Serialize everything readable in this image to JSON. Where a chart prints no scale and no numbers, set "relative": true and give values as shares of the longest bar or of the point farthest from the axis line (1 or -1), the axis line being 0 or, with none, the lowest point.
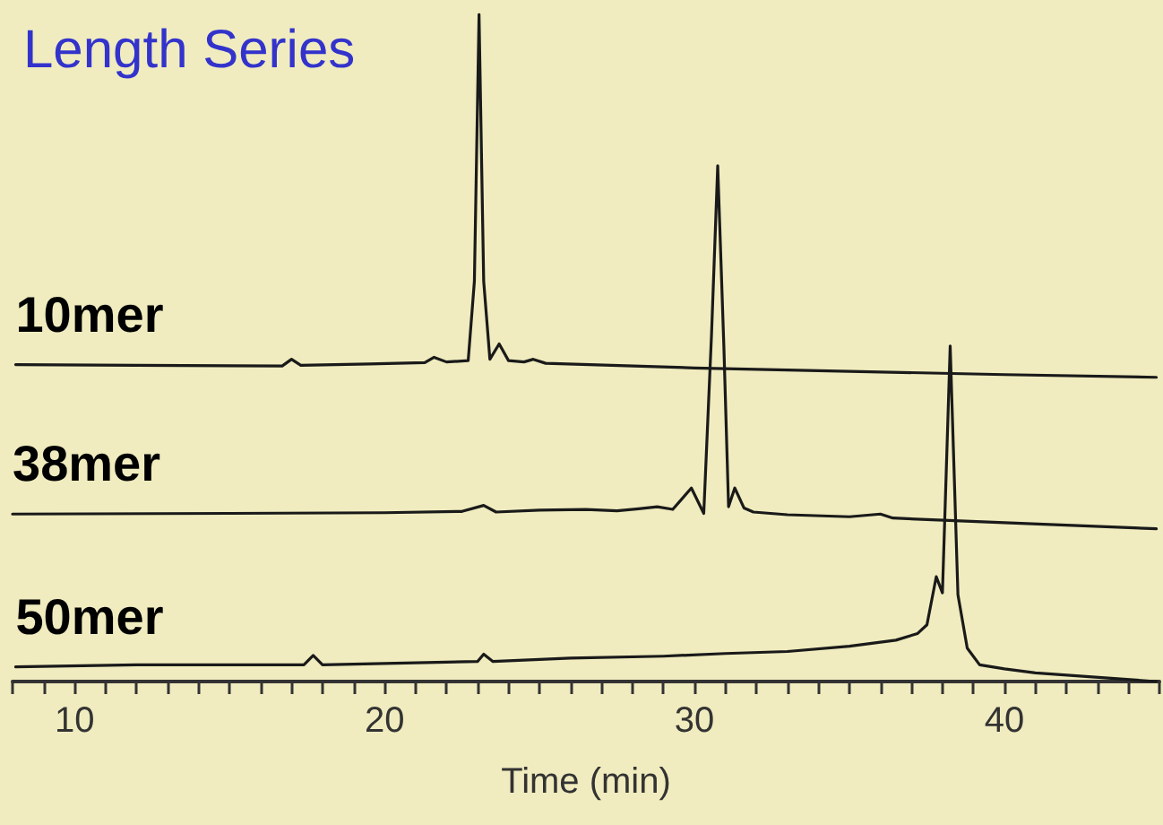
{
  "chart_data": {
    "type": "line",
    "title": "Length Series",
    "xlabel": "Time (min)",
    "relative": true,
    "grid": false,
    "marker": "none",
    "xlim": [
      8,
      45
    ],
    "xticks": [
      {
        "value": 8,
        "label": null
      },
      {
        "value": 9,
        "label": null
      },
      10,
      {
        "value": 11,
        "label": null
      },
      {
        "value": 12,
        "label": null
      },
      {
        "value": 13,
        "label": null
      },
      {
        "value": 14,
        "label": null
      },
      {
        "value": 15,
        "label": null
      },
      {
        "value": 16,
        "label": null
      },
      {
        "value": 17,
        "label": null
      },
      {
        "value": 18,
        "label": null
      },
      {
        "value": 19,
        "label": null
      },
      20,
      {
        "value": 21,
        "label": null
      },
      {
        "value": 22,
        "label": null
      },
      {
        "value": 23,
        "label": null
      },
      {
        "value": 24,
        "label": null
      },
      {
        "value": 25,
        "label": null
      },
      {
        "value": 26,
        "label": null
      },
      {
        "value": 27,
        "label": null
      },
      {
        "value": 28,
        "label": null
      },
      {
        "value": 29,
        "label": null
      },
      30,
      {
        "value": 31,
        "label": null
      },
      {
        "value": 32,
        "label": null
      },
      {
        "value": 33,
        "label": null
      },
      {
        "value": 34,
        "label": null
      },
      {
        "value": 35,
        "label": null
      },
      {
        "value": 36,
        "label": null
      },
      {
        "value": 37,
        "label": null
      },
      {
        "value": 38,
        "label": null
      },
      {
        "value": 39,
        "label": null
      },
      40,
      {
        "value": 41,
        "label": null
      },
      {
        "value": 42,
        "label": null
      },
      {
        "value": 43,
        "label": null
      },
      {
        "value": 44,
        "label": null
      },
      {
        "value": 45,
        "label": null
      }
    ],
    "series": [
      {
        "name": "10mer",
        "color": "#1a1a1a",
        "x": [
          8.1,
          12,
          16.7,
          17,
          17.3,
          19.5,
          21.3,
          21.6,
          22,
          22.7,
          22.9,
          23.05,
          23.2,
          23.4,
          23.7,
          24.0,
          24.5,
          24.8,
          25.2,
          30,
          35,
          40,
          44.9
        ],
        "values": [
          0.475,
          0.474,
          0.473,
          0.483,
          0.474,
          0.476,
          0.478,
          0.486,
          0.479,
          0.481,
          0.6,
          1.0,
          0.6,
          0.483,
          0.506,
          0.481,
          0.479,
          0.483,
          0.477,
          0.47,
          0.465,
          0.46,
          0.456
        ]
      },
      {
        "name": "38mer",
        "color": "#1a1a1a",
        "x": [
          8,
          15,
          20,
          22.5,
          23.2,
          23.6,
          25,
          26.5,
          27.5,
          28.2,
          28.8,
          29.3,
          29.9,
          30.3,
          30.55,
          30.75,
          30.95,
          31.1,
          31.3,
          31.6,
          31.9,
          33,
          35,
          36,
          36.4,
          40,
          44.9
        ],
        "values": [
          0.251,
          0.252,
          0.253,
          0.255,
          0.264,
          0.254,
          0.257,
          0.258,
          0.256,
          0.259,
          0.262,
          0.258,
          0.29,
          0.252,
          0.52,
          0.773,
          0.5,
          0.262,
          0.29,
          0.26,
          0.254,
          0.25,
          0.247,
          0.251,
          0.245,
          0.238,
          0.229
        ]
      },
      {
        "name": "50mer",
        "color": "#1a1a1a",
        "x": [
          8.1,
          12,
          17.4,
          17.7,
          18,
          20,
          23,
          23.2,
          23.5,
          26,
          29,
          31,
          33,
          35,
          36.5,
          37.2,
          37.5,
          37.8,
          38.0,
          38.25,
          38.5,
          38.8,
          39.2,
          40,
          41,
          44.9
        ],
        "values": [
          0.022,
          0.025,
          0.025,
          0.039,
          0.025,
          0.027,
          0.03,
          0.041,
          0.03,
          0.035,
          0.038,
          0.042,
          0.045,
          0.053,
          0.062,
          0.072,
          0.085,
          0.157,
          0.133,
          0.503,
          0.13,
          0.05,
          0.025,
          0.019,
          0.013,
          0.0
        ]
      }
    ]
  }
}
